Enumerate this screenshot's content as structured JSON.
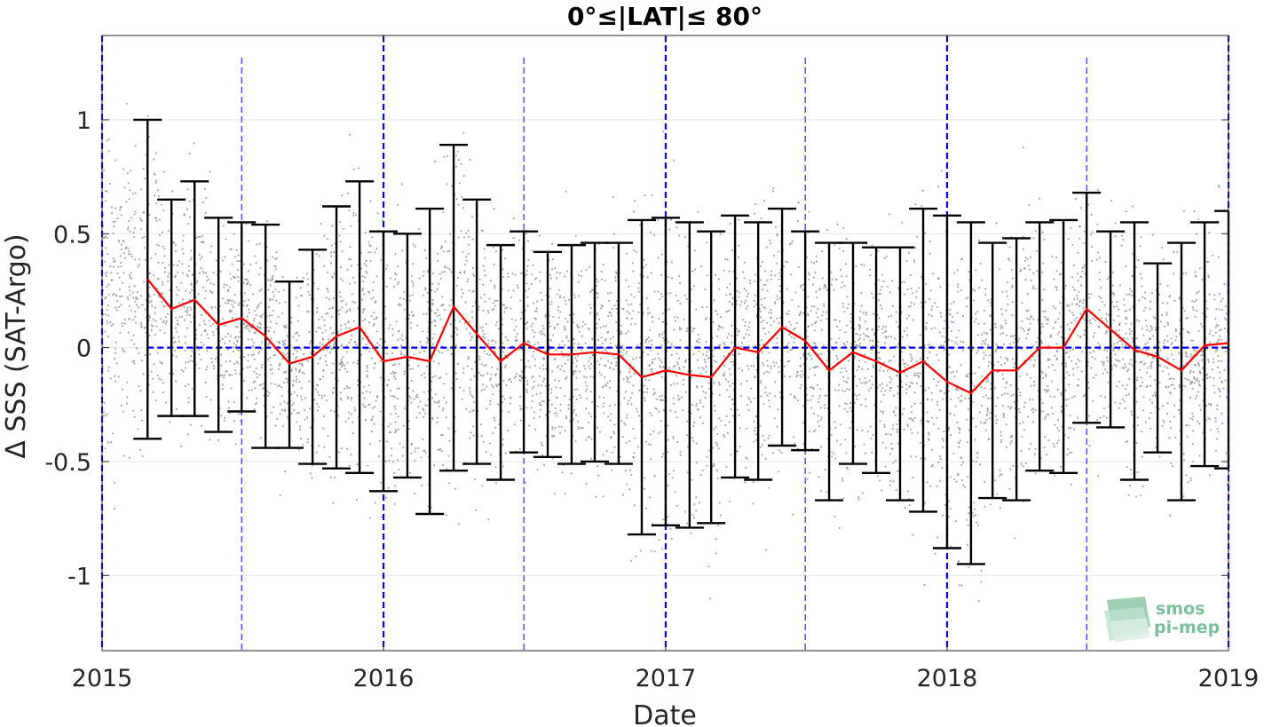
{
  "chart_data": {
    "type": "line",
    "title": "0°≤|LAT|≤ 80°",
    "xlabel": "Date",
    "ylabel": "Δ SSS (SAT-Argo)",
    "xlim": [
      "2015-01-01",
      "2019-01-01"
    ],
    "ylim": [
      -1.33,
      1.37
    ],
    "xticks": [
      "2015",
      "2016",
      "2017",
      "2018",
      "2019"
    ],
    "yticks": [
      1,
      0.5,
      0,
      -0.5,
      -1
    ],
    "ytick_labels": [
      "1",
      "0.5",
      "0",
      "-0.5",
      "-1"
    ],
    "grid": true,
    "colors": {
      "mean_line": "#ff0000",
      "errorbar": "#000000",
      "scatter": "#8c8c8c",
      "reference": "#0000ff",
      "logo": "#7cbf9c"
    },
    "reference_lines": {
      "zero": 0,
      "year_starts": [
        "2015-01-01",
        "2016-01-01",
        "2017-01-01",
        "2018-01-01",
        "2019-01-01"
      ],
      "mid_years": [
        "2015-07-01",
        "2016-07-01",
        "2017-07-01",
        "2018-07-01"
      ]
    },
    "series": [
      {
        "x": [
          "2015-03-01",
          "2015-04-01",
          "2015-05-01",
          "2015-06-01",
          "2015-07-01",
          "2015-08-01",
          "2015-09-01",
          "2015-10-01",
          "2015-11-01",
          "2015-12-01",
          "2016-01-01",
          "2016-02-01",
          "2016-03-01",
          "2016-04-01",
          "2016-05-01",
          "2016-06-01",
          "2016-07-01",
          "2016-08-01",
          "2016-09-01",
          "2016-10-01",
          "2016-11-01",
          "2016-12-01",
          "2017-01-01",
          "2017-02-01",
          "2017-03-01",
          "2017-04-01",
          "2017-05-01",
          "2017-06-01",
          "2017-07-01",
          "2017-08-01",
          "2017-09-01",
          "2017-10-01",
          "2017-11-01",
          "2017-12-01",
          "2018-01-01",
          "2018-02-01",
          "2018-03-01",
          "2018-04-01",
          "2018-05-01",
          "2018-06-01",
          "2018-07-01",
          "2018-08-01",
          "2018-09-01",
          "2018-10-01",
          "2018-11-01",
          "2018-12-01",
          "2019-01-01"
        ],
        "mean": [
          0.3,
          0.17,
          0.21,
          0.1,
          0.13,
          0.05,
          -0.07,
          -0.04,
          0.05,
          0.09,
          -0.06,
          -0.04,
          -0.06,
          0.18,
          0.06,
          -0.06,
          0.02,
          -0.03,
          -0.03,
          -0.02,
          -0.03,
          -0.13,
          -0.1,
          -0.12,
          -0.13,
          0.0,
          -0.02,
          0.09,
          0.03,
          -0.1,
          -0.02,
          -0.06,
          -0.11,
          -0.06,
          -0.15,
          -0.2,
          -0.1,
          -0.1,
          0.0,
          0.0,
          0.17,
          0.08,
          -0.01,
          -0.04,
          -0.1,
          0.01,
          0.02
        ],
        "upper": [
          1.0,
          0.65,
          0.73,
          0.57,
          0.55,
          0.54,
          0.29,
          0.43,
          0.62,
          0.73,
          0.51,
          0.5,
          0.61,
          0.89,
          0.65,
          0.45,
          0.51,
          0.42,
          0.45,
          0.46,
          0.46,
          0.56,
          0.57,
          0.55,
          0.51,
          0.58,
          0.55,
          0.61,
          0.51,
          0.46,
          0.46,
          0.44,
          0.44,
          0.61,
          0.58,
          0.55,
          0.46,
          0.48,
          0.55,
          0.56,
          0.68,
          0.51,
          0.55,
          0.37,
          0.46,
          0.55,
          0.6
        ],
        "lower": [
          -0.4,
          -0.3,
          -0.3,
          -0.37,
          -0.28,
          -0.44,
          -0.44,
          -0.51,
          -0.53,
          -0.55,
          -0.63,
          -0.57,
          -0.73,
          -0.54,
          -0.51,
          -0.58,
          -0.46,
          -0.48,
          -0.51,
          -0.5,
          -0.51,
          -0.82,
          -0.78,
          -0.79,
          -0.77,
          -0.57,
          -0.58,
          -0.43,
          -0.45,
          -0.67,
          -0.51,
          -0.55,
          -0.67,
          -0.72,
          -0.88,
          -0.95,
          -0.66,
          -0.67,
          -0.54,
          -0.55,
          -0.33,
          -0.35,
          -0.58,
          -0.46,
          -0.67,
          -0.52,
          -0.53
        ]
      }
    ],
    "scatter_note": ""
  },
  "logo": {
    "line1": "smos",
    "line2": "pi-mep"
  }
}
